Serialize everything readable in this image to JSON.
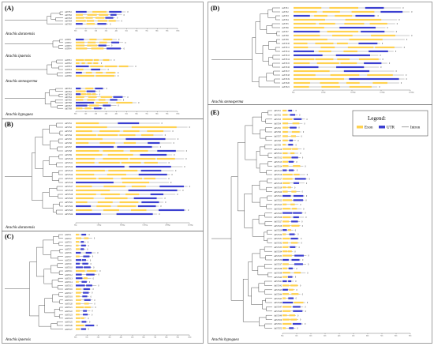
{
  "colors": {
    "exon": "#FFD24F",
    "utr": "#3B3FD0",
    "intron": "#8a8a8a",
    "tree": "#444444",
    "border": "#777777"
  },
  "legend": {
    "title": "Legend:",
    "exon": "Exon",
    "utr": "UTR",
    "intron": "Intron"
  },
  "panels": {
    "A": {
      "label": "(A)",
      "subgroups": [
        {
          "species": "Arachis duranensis",
          "n": 5,
          "marker": "0"
        },
        {
          "species": "Arachis ipaensis",
          "n": 4,
          "marker": "0"
        },
        {
          "species": "Arachis stenosperma",
          "n": 6,
          "marker": "0"
        },
        {
          "species": "Arachis hypogaea",
          "n": 8,
          "marker": "0"
        }
      ]
    },
    "B": {
      "label": "(B)",
      "species": "Arachis duranensis",
      "n": 24,
      "marker": "0"
    },
    "C": {
      "label": "(C)",
      "species": "Arachis ipaensis",
      "n": 27,
      "marker": "0"
    },
    "D": {
      "label": "(D)",
      "species": "Arachis stenosperma",
      "n": 21,
      "marker": "0"
    },
    "E": {
      "label": "(E)",
      "species": "Arachis hypogaea",
      "n": 52,
      "marker": "0"
    }
  },
  "gene_names": {
    "A1": [
      "AdTPS1",
      "AdTPS2",
      "AdTPS3",
      "AdTPS4",
      "AdTPS5"
    ],
    "A2": [
      "AiTPS1",
      "AiTPS2",
      "AiTPS3",
      "AiTPS4"
    ],
    "A3": [
      "AsTPS1",
      "AsTPS2",
      "AsTPS3",
      "AsTPS4",
      "AsTPS5",
      "AsTPS6"
    ],
    "A4": [
      "AhTPS1",
      "AhTPS2",
      "AhTPS3",
      "AhTPS4",
      "AhTPS5",
      "AhTPS6",
      "AhTPS7",
      "AhTPS8"
    ],
    "B": [
      "AdSTS1",
      "AdSTS2",
      "AdSTS3",
      "AdSTS4",
      "AdSTS5",
      "AdSTS6",
      "AdSTS7",
      "AdSTS8",
      "AdSTS9",
      "AdSTS10",
      "AdSTS11",
      "AdSTS12",
      "AdSTS13",
      "AdSTS14",
      "AdSTS15",
      "AdSTS16",
      "AdSTS17",
      "AdSTS18",
      "AdSTS19",
      "AdSTS20",
      "AdSTS21",
      "AdSTS22",
      "AdSTS23",
      "AdSTS24"
    ],
    "C": [
      "AiSTS1",
      "AiSTS2",
      "AiSTS3",
      "AiSTS4",
      "AiSTS5",
      "AiSTS6",
      "AiSTS7",
      "AiSTS8",
      "AiSTS9",
      "AiSTS10",
      "AiSTS11",
      "AiSTS12",
      "AiSTS13",
      "AiSTS14",
      "AiSTS15",
      "AiSTS16",
      "AiSTS17",
      "AiSTS18",
      "AiSTS19",
      "AiSTS20",
      "AiSTS21",
      "AiSTS22",
      "AiSTS23",
      "AiSTS24",
      "AiSTS25",
      "AiSTS26",
      "AiSTS27"
    ],
    "D": [
      "AsSTS1",
      "AsSTS2",
      "AsSTS3",
      "AsSTS4",
      "AsSTS5",
      "AsSTS6",
      "AsSTS7",
      "AsSTS8",
      "AsSTS9",
      "AsSTS10",
      "AsSTS11",
      "AsSTS12",
      "AsSTS13",
      "AsSTS14",
      "AsSTS15",
      "AsSTS16",
      "AsSTS17",
      "AsSTS18",
      "AsSTS19",
      "AsSTS20",
      "AsSTS21"
    ],
    "E": [
      "AhSTS1",
      "AhSTS2",
      "AhSTS3",
      "AhSTS4",
      "AhSTS5",
      "AhSTS6",
      "AhSTS7",
      "AhSTS8",
      "AhSTS9",
      "AhSTS10",
      "AhSTS11",
      "AhSTS12",
      "AhSTS13",
      "AhSTS14",
      "AhSTS15",
      "AhSTS16",
      "AhSTS17",
      "AhSTS18",
      "AhSTS19",
      "AhSTS20",
      "AhSTS21",
      "AhSTS22",
      "AhSTS23",
      "AhSTS24",
      "AhSTS25",
      "AhSTS26",
      "AhSTS27",
      "AhSTS28",
      "AhSTS29",
      "AhSTS30",
      "AhSTS31",
      "AhSTS32",
      "AhSTS33",
      "AhSTS34",
      "AhSTS35",
      "AhSTS36",
      "AhSTS37",
      "AhSTS38",
      "AhSTS39",
      "AhSTS40",
      "AhSTS41",
      "AhSTS42",
      "AhSTS43",
      "AhSTS44",
      "AhSTS45",
      "AhSTS46",
      "AhSTS47",
      "AhSTS48",
      "AhSTS49",
      "AhSTS50",
      "AhSTS51",
      "AhSTS52"
    ]
  },
  "scale_ticks": {
    "A": [
      "0kb",
      "1kb",
      "2kb",
      "3kb",
      "4kb",
      "5kb",
      "6kb",
      "7kb",
      "8kb",
      "9kb",
      "10kb"
    ],
    "B": [
      "0bp",
      "500bp",
      "1000bp",
      "1500bp",
      "2000bp",
      "2500bp"
    ],
    "C": [
      "0kb",
      "1kb",
      "2kb",
      "3kb",
      "4kb",
      "5kb",
      "6kb",
      "7kb",
      "8kb",
      "9kb",
      "10kb"
    ],
    "D": [
      "0bp",
      "500bp",
      "1000bp",
      "1500bp",
      "2000bp"
    ],
    "E": [
      "0bp",
      "1kb",
      "2kb",
      "3kb",
      "4kb",
      "5kb",
      "6kb",
      "7kb",
      "8kb",
      "9kb"
    ]
  }
}
